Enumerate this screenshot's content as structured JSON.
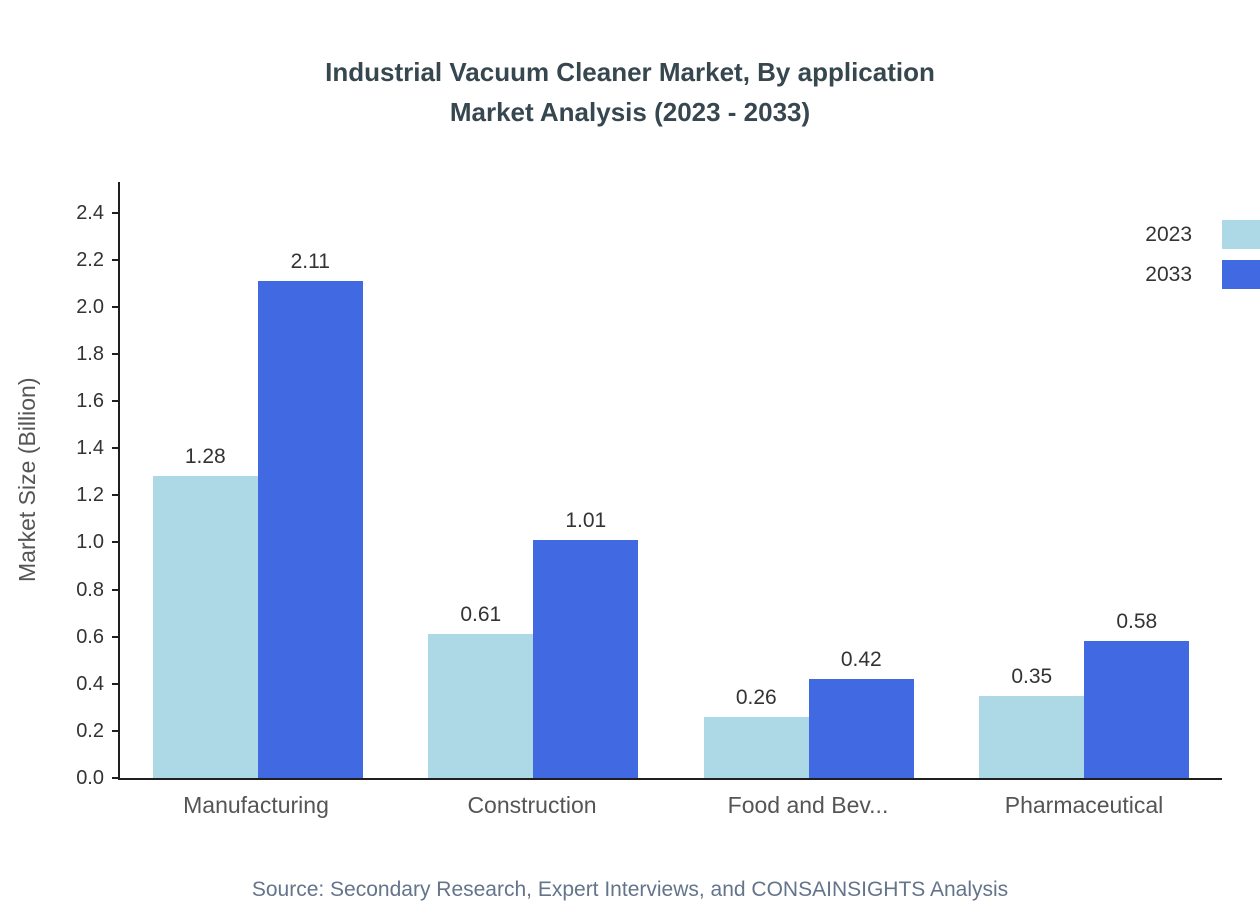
{
  "title": {
    "line1": "Industrial Vacuum Cleaner Market, By application",
    "line2": "Market Analysis (2023 - 2033)"
  },
  "source": "Source: Secondary Research, Expert Interviews, and CONSAINSIGHTS Analysis",
  "chart_data": {
    "type": "bar",
    "title": "Industrial Vacuum Cleaner Market, By application Market Analysis (2023 - 2033)",
    "categories": [
      "Manufacturing",
      "Construction",
      "Food and Bev...",
      "Pharmaceutical"
    ],
    "series": [
      {
        "name": "2023",
        "color": "#ADD8E6",
        "values": [
          1.28,
          0.61,
          0.26,
          0.35
        ]
      },
      {
        "name": "2033",
        "color": "#4169E1",
        "values": [
          2.11,
          1.01,
          0.42,
          0.58
        ]
      }
    ],
    "xlabel": "",
    "ylabel": "Market Size (Billion)",
    "ylim": [
      0,
      2.53
    ],
    "yticks": [
      0,
      0.2,
      0.4,
      0.6,
      0.8,
      1.0,
      1.2,
      1.4,
      1.6,
      1.8,
      2.0,
      2.2,
      2.4
    ],
    "grid": false,
    "legend_position": "top-right"
  }
}
